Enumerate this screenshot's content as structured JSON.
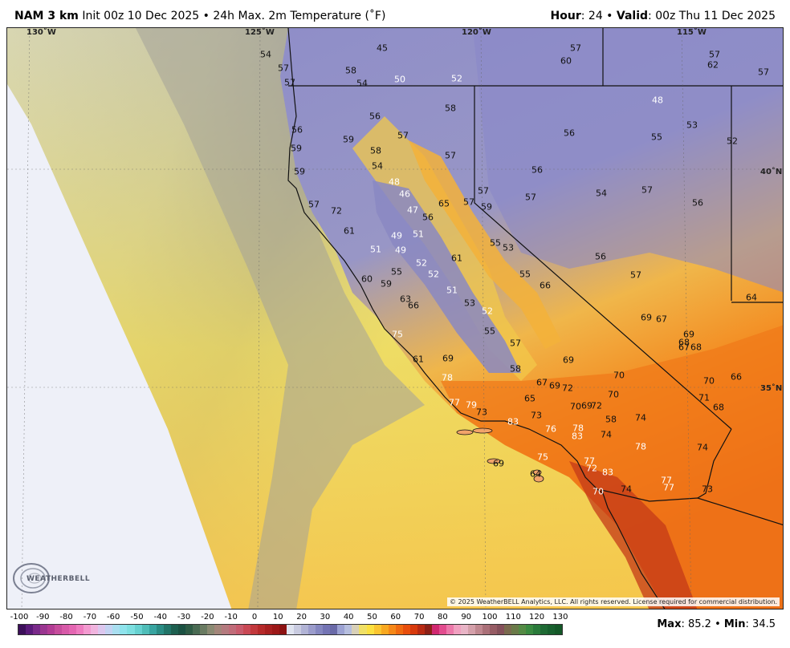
{
  "header": {
    "model": "NAM 3 km",
    "description": "Init 00z 10 Dec 2025 • 24h Max. 2m Temperature (˚F)",
    "hour_label": "Hour",
    "hour_value": ": 24 • ",
    "valid_label": "Valid",
    "valid_value": ": 00z Thu 11 Dec 2025"
  },
  "map": {
    "longitude_labels": [
      "130˚W",
      "125˚W",
      "120˚W",
      "115˚W"
    ],
    "latitude_labels": [
      "40˚N",
      "35˚N"
    ],
    "copyright": "© 2025 WeatherBELL Analytics, LLC. All rights reserved. License required for commercial distribution.",
    "logo_text": "WEATHERBELL",
    "temperature_labels": [
      [
        "54",
        330,
        67,
        "d"
      ],
      [
        "57",
        352,
        84,
        "d"
      ],
      [
        "57",
        360,
        102,
        "d"
      ],
      [
        "58",
        436,
        87,
        "d"
      ],
      [
        "45",
        475,
        59,
        "d"
      ],
      [
        "54",
        450,
        103,
        "d"
      ],
      [
        "50",
        497,
        98,
        "l"
      ],
      [
        "52",
        568,
        97,
        "l"
      ],
      [
        "57",
        716,
        59,
        "d"
      ],
      [
        "60",
        704,
        75,
        "d"
      ],
      [
        "57",
        889,
        67,
        "d"
      ],
      [
        "62",
        887,
        80,
        "d"
      ],
      [
        "57",
        950,
        89,
        "d"
      ],
      [
        "58",
        560,
        134,
        "d"
      ],
      [
        "56",
        466,
        144,
        "d"
      ],
      [
        "56",
        369,
        161,
        "d"
      ],
      [
        "59",
        433,
        173,
        "d"
      ],
      [
        "57",
        501,
        168,
        "d"
      ],
      [
        "58",
        467,
        187,
        "d"
      ],
      [
        "59",
        368,
        184,
        "d"
      ],
      [
        "57",
        560,
        193,
        "d"
      ],
      [
        "56",
        708,
        165,
        "d"
      ],
      [
        "48",
        818,
        124,
        "l"
      ],
      [
        "55",
        817,
        170,
        "d"
      ],
      [
        "53",
        861,
        155,
        "d"
      ],
      [
        "52",
        911,
        175,
        "d"
      ],
      [
        "54",
        469,
        206,
        "d"
      ],
      [
        "56",
        668,
        211,
        "d"
      ],
      [
        "59",
        372,
        213,
        "d"
      ],
      [
        "48",
        490,
        226,
        "l"
      ],
      [
        "46",
        503,
        241,
        "l"
      ],
      [
        "57",
        601,
        237,
        "d"
      ],
      [
        "57",
        660,
        245,
        "d"
      ],
      [
        "54",
        748,
        240,
        "d"
      ],
      [
        "57",
        805,
        236,
        "d"
      ],
      [
        "56",
        868,
        252,
        "d"
      ],
      [
        "65",
        552,
        253,
        "d"
      ],
      [
        "57",
        583,
        251,
        "d"
      ],
      [
        "59",
        605,
        257,
        "d"
      ],
      [
        "47",
        513,
        261,
        "l"
      ],
      [
        "56",
        532,
        270,
        "d"
      ],
      [
        "57",
        390,
        254,
        "d"
      ],
      [
        "72",
        418,
        262,
        "d"
      ],
      [
        "61",
        434,
        287,
        "d"
      ],
      [
        "49",
        493,
        293,
        "l"
      ],
      [
        "51",
        520,
        291,
        "l"
      ],
      [
        "51",
        467,
        310,
        "l"
      ],
      [
        "49",
        498,
        311,
        "l"
      ],
      [
        "55",
        616,
        302,
        "d"
      ],
      [
        "53",
        632,
        308,
        "d"
      ],
      [
        "61",
        568,
        321,
        "d"
      ],
      [
        "52",
        524,
        327,
        "l"
      ],
      [
        "55",
        493,
        338,
        "d"
      ],
      [
        "52",
        539,
        341,
        "l"
      ],
      [
        "56",
        747,
        319,
        "d"
      ],
      [
        "57",
        791,
        342,
        "d"
      ],
      [
        "60",
        456,
        347,
        "d"
      ],
      [
        "59",
        480,
        353,
        "d"
      ],
      [
        "55",
        653,
        341,
        "d"
      ],
      [
        "66",
        678,
        355,
        "d"
      ],
      [
        "51",
        562,
        361,
        "l"
      ],
      [
        "63",
        504,
        372,
        "d"
      ],
      [
        "66",
        514,
        380,
        "d"
      ],
      [
        "53",
        584,
        377,
        "d"
      ],
      [
        "52",
        606,
        387,
        "l"
      ],
      [
        "64",
        935,
        370,
        "d"
      ],
      [
        "69",
        804,
        395,
        "d"
      ],
      [
        "67",
        823,
        397,
        "d"
      ],
      [
        "75",
        494,
        416,
        "l"
      ],
      [
        "55",
        609,
        412,
        "d"
      ],
      [
        "57",
        641,
        427,
        "d"
      ],
      [
        "69",
        857,
        416,
        "d"
      ],
      [
        "68",
        851,
        426,
        "d"
      ],
      [
        "67",
        851,
        432,
        "d"
      ],
      [
        "68",
        866,
        432,
        "d"
      ],
      [
        "61",
        520,
        447,
        "d"
      ],
      [
        "69",
        557,
        446,
        "d"
      ],
      [
        "69",
        707,
        448,
        "d"
      ],
      [
        "58",
        641,
        459,
        "d"
      ],
      [
        "70",
        770,
        467,
        "d"
      ],
      [
        "78",
        556,
        470,
        "l"
      ],
      [
        "67",
        674,
        476,
        "d"
      ],
      [
        "69",
        690,
        480,
        "d"
      ],
      [
        "72",
        706,
        483,
        "d"
      ],
      [
        "70",
        882,
        474,
        "d"
      ],
      [
        "66",
        916,
        469,
        "d"
      ],
      [
        "70",
        763,
        491,
        "d"
      ],
      [
        "65",
        659,
        496,
        "d"
      ],
      [
        "71",
        876,
        495,
        "d"
      ],
      [
        "77",
        565,
        501,
        "l"
      ],
      [
        "79",
        586,
        504,
        "l"
      ],
      [
        "73",
        599,
        513,
        "d"
      ],
      [
        "70",
        716,
        506,
        "d"
      ],
      [
        "69",
        730,
        505,
        "d"
      ],
      [
        "72",
        742,
        505,
        "d"
      ],
      [
        "68",
        894,
        507,
        "d"
      ],
      [
        "83",
        638,
        525,
        "l"
      ],
      [
        "73",
        667,
        517,
        "d"
      ],
      [
        "58",
        760,
        522,
        "d"
      ],
      [
        "74",
        797,
        520,
        "d"
      ],
      [
        "76",
        685,
        534,
        "l"
      ],
      [
        "78",
        719,
        533,
        "l"
      ],
      [
        "83",
        718,
        543,
        "l"
      ],
      [
        "74",
        754,
        541,
        "d"
      ],
      [
        "78",
        797,
        556,
        "l"
      ],
      [
        "74",
        874,
        557,
        "d"
      ],
      [
        "69",
        620,
        577,
        "d"
      ],
      [
        "75",
        675,
        569,
        "l"
      ],
      [
        "77",
        733,
        574,
        "l"
      ],
      [
        "72",
        736,
        583,
        "l"
      ],
      [
        "83",
        756,
        588,
        "l"
      ],
      [
        "64",
        666,
        590,
        "d"
      ],
      [
        "77",
        829,
        598,
        "l"
      ],
      [
        "77",
        832,
        607,
        "l"
      ],
      [
        "70",
        744,
        612,
        "l"
      ],
      [
        "74",
        779,
        609,
        "d"
      ],
      [
        "73",
        880,
        609,
        "d"
      ]
    ]
  },
  "colorbar": {
    "ticks": [
      "-100",
      "-90",
      "-80",
      "-70",
      "-60",
      "-50",
      "-40",
      "-30",
      "-20",
      "-10",
      "0",
      "10",
      "20",
      "30",
      "40",
      "50",
      "60",
      "70",
      "80",
      "90",
      "100",
      "110",
      "120",
      "130"
    ],
    "colors": [
      "#3c0f5a",
      "#5a1a7a",
      "#7a2a8a",
      "#9a3690",
      "#b23c94",
      "#c64d9c",
      "#d75aa8",
      "#e466b2",
      "#ee7cc0",
      "#f39ad0",
      "#f0b4de",
      "#dcc7ee",
      "#c4d3f2",
      "#a9def0",
      "#8fe3ec",
      "#7ddfe0",
      "#66d1d0",
      "#4fbdb8",
      "#38a4a0",
      "#2a8c84",
      "#217468",
      "#1d5f4f",
      "#1b5142",
      "#2e5b45",
      "#4a6b53",
      "#6a7b62",
      "#8a8a72",
      "#a3867a",
      "#b47a7e",
      "#c06c79",
      "#c85b6c",
      "#c94854",
      "#c2383c",
      "#b62a2a",
      "#a82020",
      "#9c1818",
      "#8c1212",
      "#e0e4f0",
      "#c9cbe0",
      "#b1b3d5",
      "#9b9ccb",
      "#8587c0",
      "#7474b4",
      "#6a6aa8",
      "#9ca2d3",
      "#b6bede",
      "#d8d0b8",
      "#f0e066",
      "#fce040",
      "#fbc530",
      "#f8a820",
      "#f68818",
      "#f06a10",
      "#e84e0c",
      "#d83a0c",
      "#b82a12",
      "#8c2016",
      "#d02870",
      "#e24c8e",
      "#ec78aa",
      "#f0a0c0",
      "#e8b4c6",
      "#d4a0aa",
      "#c08890",
      "#aa7078",
      "#965c64",
      "#84505a",
      "#7a6a4e",
      "#6a7a48",
      "#548a44",
      "#3a8a40",
      "#2a7a3a",
      "#1e6a34",
      "#18602e",
      "#145828"
    ],
    "max_label": "Max",
    "max_value": ": 85.2 • ",
    "min_label": "Min",
    "min_value": ": 34.5"
  }
}
